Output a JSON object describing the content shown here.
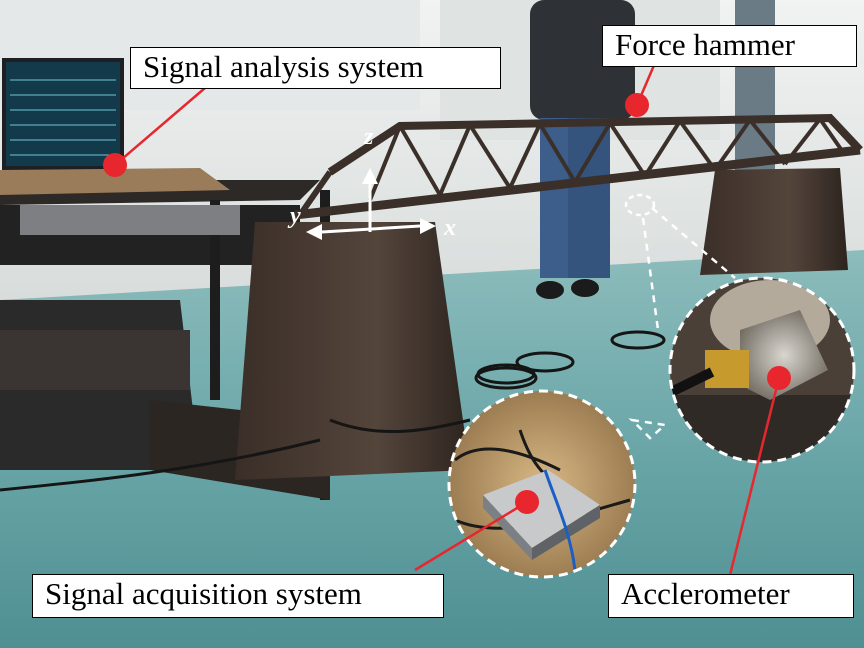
{
  "labels": {
    "signal_analysis": "Signal analysis system",
    "force_hammer": "Force hammer",
    "signal_acquisition": "Signal acquisition system",
    "accelerometer": "Acclerometer"
  },
  "axes": {
    "z": "z",
    "y": "y",
    "x": "x"
  },
  "colors": {
    "marker": "#e8262d",
    "floor": "#5fa3a6",
    "wall": "#e9ecec",
    "steel": "#3d332c"
  }
}
